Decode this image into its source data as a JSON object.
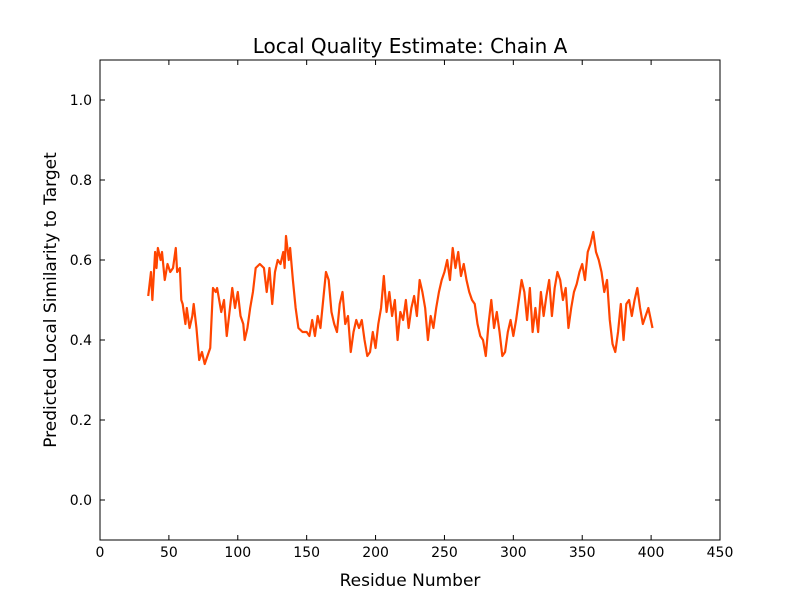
{
  "chart_data": {
    "type": "line",
    "title": "Local Quality Estimate: Chain A",
    "x_label": "Residue Number",
    "y_label": "Predicted Local Similarity to Target",
    "xlim": [
      0,
      450
    ],
    "xticks": [
      0,
      50,
      100,
      150,
      200,
      250,
      300,
      350,
      400,
      450
    ],
    "ylim": [
      -0.1,
      1.1
    ],
    "yticks": [
      {
        "value": 0,
        "label": "0.0"
      },
      0.2,
      0.4,
      0.6,
      0.8,
      {
        "value": 1,
        "label": "1.0"
      }
    ],
    "series": [
      {
        "color": "#ff4500",
        "x": [
          35,
          37,
          38,
          40,
          41,
          42,
          44,
          45,
          47,
          49,
          51,
          53,
          55,
          56,
          58,
          59,
          60,
          62,
          63,
          65,
          67,
          68,
          70,
          72,
          74,
          76,
          78,
          80,
          82,
          84,
          85,
          88,
          90,
          92,
          94,
          96,
          98,
          100,
          102,
          104,
          105,
          107,
          109,
          111,
          113,
          116,
          119,
          121,
          123,
          125,
          127,
          129,
          131,
          133,
          134,
          135,
          137,
          138,
          140,
          142,
          144,
          147,
          150,
          152,
          154,
          156,
          158,
          160,
          162,
          164,
          166,
          168,
          170,
          172,
          174,
          176,
          178,
          180,
          182,
          184,
          186,
          188,
          190,
          192,
          194,
          196,
          198,
          200,
          202,
          204,
          206,
          208,
          210,
          212,
          214,
          216,
          218,
          220,
          222,
          224,
          226,
          228,
          230,
          232,
          234,
          236,
          238,
          240,
          242,
          244,
          246,
          248,
          250,
          252,
          254,
          256,
          258,
          260,
          262,
          264,
          266,
          268,
          270,
          272,
          274,
          276,
          278,
          280,
          282,
          284,
          286,
          288,
          290,
          292,
          294,
          296,
          298,
          300,
          302,
          304,
          306,
          308,
          310,
          312,
          314,
          316,
          318,
          320,
          322,
          324,
          326,
          328,
          330,
          332,
          334,
          336,
          338,
          340,
          342,
          344,
          346,
          348,
          350,
          352,
          354,
          356,
          358,
          360,
          362,
          364,
          366,
          368,
          370,
          372,
          374,
          376,
          378,
          380,
          382,
          384,
          386,
          388,
          390,
          392,
          394,
          396,
          398,
          401
        ],
        "values": [
          0.51,
          0.57,
          0.5,
          0.62,
          0.58,
          0.63,
          0.6,
          0.62,
          0.55,
          0.59,
          0.57,
          0.58,
          0.63,
          0.57,
          0.58,
          0.5,
          0.49,
          0.44,
          0.48,
          0.43,
          0.46,
          0.49,
          0.43,
          0.35,
          0.37,
          0.34,
          0.36,
          0.38,
          0.53,
          0.52,
          0.53,
          0.47,
          0.5,
          0.41,
          0.47,
          0.53,
          0.48,
          0.52,
          0.46,
          0.44,
          0.4,
          0.43,
          0.48,
          0.52,
          0.58,
          0.59,
          0.58,
          0.52,
          0.58,
          0.49,
          0.57,
          0.6,
          0.59,
          0.62,
          0.58,
          0.66,
          0.6,
          0.63,
          0.55,
          0.48,
          0.43,
          0.42,
          0.42,
          0.41,
          0.45,
          0.41,
          0.46,
          0.43,
          0.5,
          0.57,
          0.55,
          0.47,
          0.44,
          0.42,
          0.49,
          0.52,
          0.44,
          0.46,
          0.37,
          0.42,
          0.45,
          0.43,
          0.45,
          0.4,
          0.36,
          0.37,
          0.42,
          0.38,
          0.44,
          0.48,
          0.56,
          0.47,
          0.52,
          0.46,
          0.5,
          0.4,
          0.47,
          0.45,
          0.5,
          0.43,
          0.48,
          0.51,
          0.46,
          0.55,
          0.52,
          0.48,
          0.4,
          0.46,
          0.43,
          0.48,
          0.52,
          0.55,
          0.57,
          0.6,
          0.55,
          0.63,
          0.58,
          0.62,
          0.56,
          0.59,
          0.55,
          0.52,
          0.5,
          0.49,
          0.44,
          0.41,
          0.4,
          0.36,
          0.44,
          0.5,
          0.43,
          0.47,
          0.42,
          0.36,
          0.37,
          0.42,
          0.45,
          0.41,
          0.45,
          0.5,
          0.55,
          0.52,
          0.45,
          0.53,
          0.42,
          0.48,
          0.42,
          0.52,
          0.46,
          0.51,
          0.55,
          0.46,
          0.53,
          0.57,
          0.55,
          0.5,
          0.53,
          0.43,
          0.48,
          0.52,
          0.54,
          0.57,
          0.59,
          0.55,
          0.62,
          0.64,
          0.67,
          0.62,
          0.6,
          0.57,
          0.52,
          0.55,
          0.45,
          0.39,
          0.37,
          0.42,
          0.49,
          0.4,
          0.49,
          0.5,
          0.46,
          0.5,
          0.53,
          0.48,
          0.44,
          0.46,
          0.48,
          0.43
        ]
      }
    ]
  }
}
